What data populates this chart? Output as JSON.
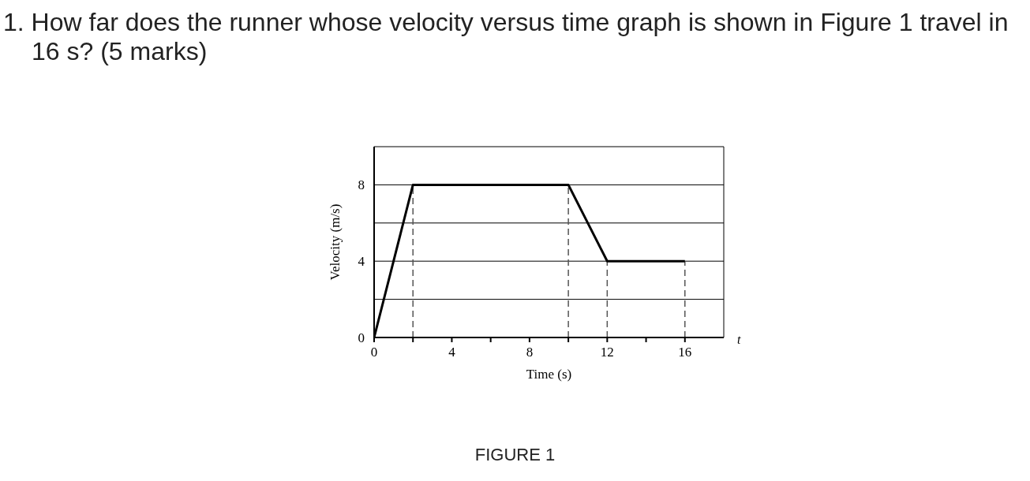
{
  "chart_data": {
    "type": "line",
    "title": "1.  How far does the runner whose velocity versus time graph is shown in Figure 1 travel in 16 s? (5 marks)",
    "xlabel": "Time (s)",
    "ylabel": "Velocity (m/s)",
    "annotations": [
      "t",
      "FIGURE 1"
    ],
    "x": [
      0,
      2,
      10,
      12,
      16
    ],
    "series": [
      {
        "color": "#000000",
        "values": [
          0,
          8,
          8,
          4,
          4
        ]
      }
    ],
    "xlim": [
      0,
      18
    ],
    "xticks": [
      0,
      {
        "value": 2,
        "label": null
      },
      4,
      {
        "value": 6,
        "label": null
      },
      8,
      {
        "value": 10,
        "label": null
      },
      12,
      {
        "value": 14,
        "label": null
      },
      16
    ],
    "ylim": [
      0,
      10
    ],
    "yticks": [
      0,
      {
        "value": 2,
        "label": null
      },
      4,
      {
        "value": 6,
        "label": null
      },
      8
    ],
    "grid": "y",
    "marker": "none",
    "line_style": "solid",
    "ref_lines": [
      {
        "axis": "x",
        "value": 2,
        "line_style": "dashed",
        "color": "#555555"
      },
      {
        "axis": "x",
        "value": 10,
        "line_style": "dashed",
        "color": "#555555"
      },
      {
        "axis": "x",
        "value": 12,
        "line_style": "dashed",
        "color": "#555555"
      },
      {
        "axis": "x",
        "value": 16,
        "line_style": "dashed",
        "color": "#555555"
      }
    ]
  }
}
